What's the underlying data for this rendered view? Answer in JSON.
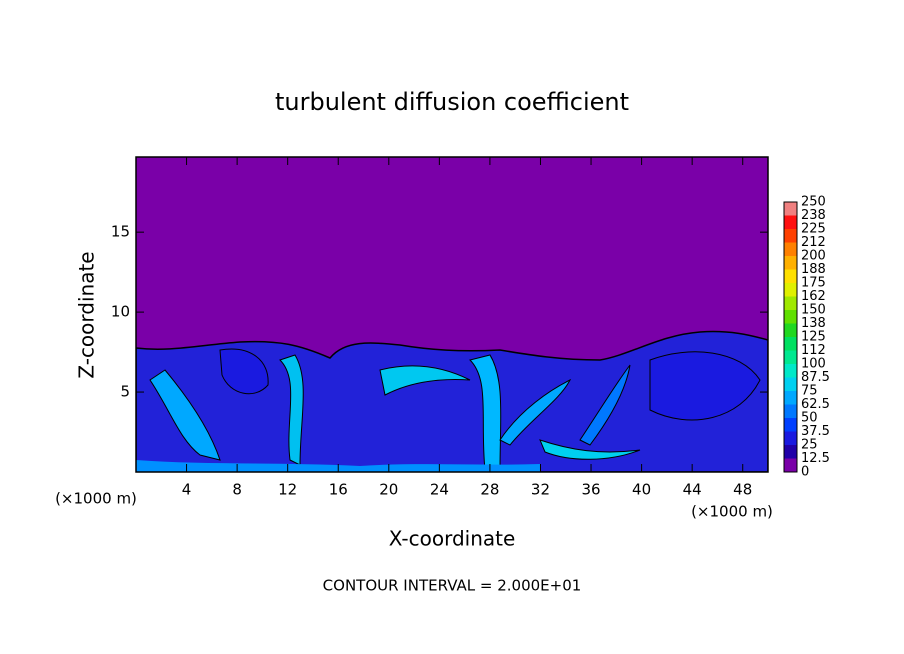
{
  "chart_data": {
    "type": "contour",
    "title": "turbulent diffusion coefficient",
    "x_label": "X-coordinate",
    "y_label": "Z-coordinate",
    "x_unit": "(×1000 m)",
    "annotation": "CONTOUR INTERVAL = 2.000E+01",
    "xlim": [
      0,
      50
    ],
    "xticks": [
      4,
      8,
      12,
      16,
      20,
      24,
      28,
      32,
      36,
      40,
      44,
      48
    ],
    "ylim": [
      0,
      19.7
    ],
    "yticks": [
      5,
      10,
      15
    ],
    "colorbar": {
      "levels": [
        0,
        12.5,
        25,
        37.5,
        50,
        62.5,
        75,
        87.5,
        100,
        112,
        125,
        138,
        150,
        162,
        175,
        188,
        200,
        212,
        225,
        238,
        250
      ],
      "colors": [
        "#7a00a8",
        "#2000a8",
        "#1a1ae0",
        "#0040ff",
        "#0078ff",
        "#00a8ff",
        "#00d0f0",
        "#00e8c8",
        "#00e890",
        "#00e060",
        "#20d820",
        "#60e000",
        "#a0e800",
        "#e0f000",
        "#ffe000",
        "#ffb000",
        "#ff8000",
        "#ff4000",
        "#ff1010",
        "#f08080"
      ]
    }
  }
}
